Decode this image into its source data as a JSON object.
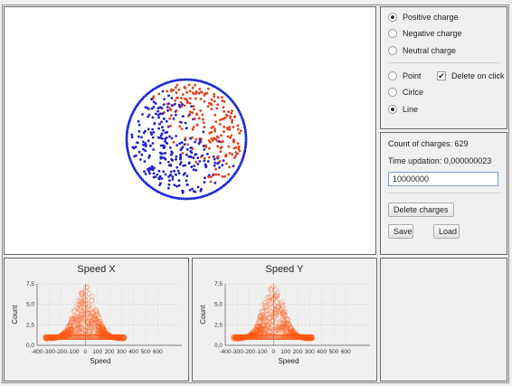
{
  "charge_type": {
    "options": [
      {
        "label": "Positive charge",
        "selected": true
      },
      {
        "label": "Negative charge",
        "selected": false
      },
      {
        "label": "Neutral charge",
        "selected": false
      }
    ]
  },
  "draw_mode": {
    "options": [
      {
        "label": "Point",
        "selected": false
      },
      {
        "label": "Cirlce",
        "selected": false
      },
      {
        "label": "Line",
        "selected": true
      }
    ],
    "delete_on_click": {
      "label": "Delete on click",
      "checked": true,
      "mark": "✔"
    }
  },
  "stats": {
    "count_label": "Count of charges: 629",
    "time_label": "Time updation: 0,000000023",
    "input_value": "10000000"
  },
  "buttons": {
    "delete_charges": "Delete charges",
    "save": "Save",
    "load": "Load"
  },
  "simulation": {
    "positive_color": "#e0401a",
    "negative_color": "#2020c8",
    "boundary_color": "#1a2ad0"
  },
  "chart_data": [
    {
      "type": "scatter",
      "title": "Speed X",
      "xlabel": "Speed",
      "ylabel": "Count",
      "xlim": [
        -400,
        800
      ],
      "ylim": [
        0,
        7.5
      ],
      "x_ticks": [
        "-400",
        "-300",
        "-200",
        "-100",
        "0",
        "100",
        "200",
        "300",
        "400",
        "500",
        "600"
      ],
      "y_ticks": [
        "0,0",
        "2,5",
        "5,0",
        "7,5"
      ],
      "x_range_of_points": [
        -330,
        320
      ],
      "peak_count": 7.5,
      "color": "#ff5a14",
      "grid": true
    },
    {
      "type": "scatter",
      "title": "Speed Y",
      "xlabel": "Speed",
      "ylabel": "Count",
      "xlim": [
        -400,
        800
      ],
      "ylim": [
        0,
        7.5
      ],
      "x_ticks": [
        "-400",
        "-300",
        "-200",
        "-100",
        "0",
        "100",
        "200",
        "300",
        "400",
        "500",
        "600"
      ],
      "y_ticks": [
        "0,0",
        "2,5",
        "5,0",
        "7,5"
      ],
      "x_range_of_points": [
        -330,
        320
      ],
      "peak_count": 7.5,
      "color": "#ff5a14",
      "grid": true
    }
  ]
}
